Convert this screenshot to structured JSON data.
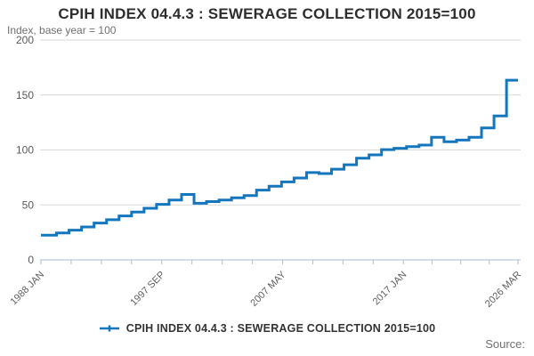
{
  "header": {
    "title": "CPIH INDEX 04.4.3 : SEWERAGE COLLECTION 2015=100",
    "subtitle": "Index, base year = 100"
  },
  "legend": {
    "label": "CPIH INDEX 04.4.3 : SEWERAGE COLLECTION 2015=100"
  },
  "footer": {
    "source_label": "Source:"
  },
  "chart_data": {
    "type": "line",
    "step": true,
    "title": "CPIH INDEX 04.4.3 : SEWERAGE COLLECTION 2015=100",
    "ylabel": "Index, base year = 100",
    "ylim": [
      0,
      200
    ],
    "yticks": [
      0,
      50,
      100,
      150,
      200
    ],
    "grid": true,
    "legend_position": "bottom",
    "x_total_months": 458,
    "xticks": [
      {
        "m": 0,
        "label": "1988 JAN"
      },
      {
        "m": 116,
        "label": "1997 SEP"
      },
      {
        "m": 232,
        "label": "2007 MAY"
      },
      {
        "m": 348,
        "label": "2017 JAN"
      },
      {
        "m": 458,
        "label": "2026 MAR"
      }
    ],
    "minor_ticks_per_interval": 4,
    "series": [
      {
        "name": "CPIH INDEX 04.4.3 : SEWERAGE COLLECTION 2015=100",
        "step_month_of_year": 3,
        "years": [
          1988,
          1989,
          1990,
          1991,
          1992,
          1993,
          1994,
          1995,
          1996,
          1997,
          1998,
          1999,
          2000,
          2001,
          2002,
          2003,
          2004,
          2005,
          2006,
          2007,
          2008,
          2009,
          2010,
          2011,
          2012,
          2013,
          2014,
          2015,
          2016,
          2017,
          2018,
          2019,
          2020,
          2021,
          2022,
          2023,
          2024,
          2025
        ],
        "values": [
          22.5,
          24.5,
          27,
          30,
          33.5,
          36.5,
          40,
          43.5,
          47,
          50.5,
          54.5,
          59.5,
          51.5,
          53,
          54.5,
          56.5,
          58.5,
          63.5,
          67,
          71,
          74.5,
          79.5,
          78.5,
          82.5,
          86.5,
          92.5,
          95.5,
          100.3,
          101.5,
          103,
          104.5,
          111.5,
          107.5,
          109,
          111.5,
          120,
          131,
          163.5
        ]
      }
    ],
    "colors": {
      "line": "#1476bd",
      "grid": "#d9d9d9",
      "axis": "#aabfd4",
      "tick": "#aabfd4"
    }
  }
}
